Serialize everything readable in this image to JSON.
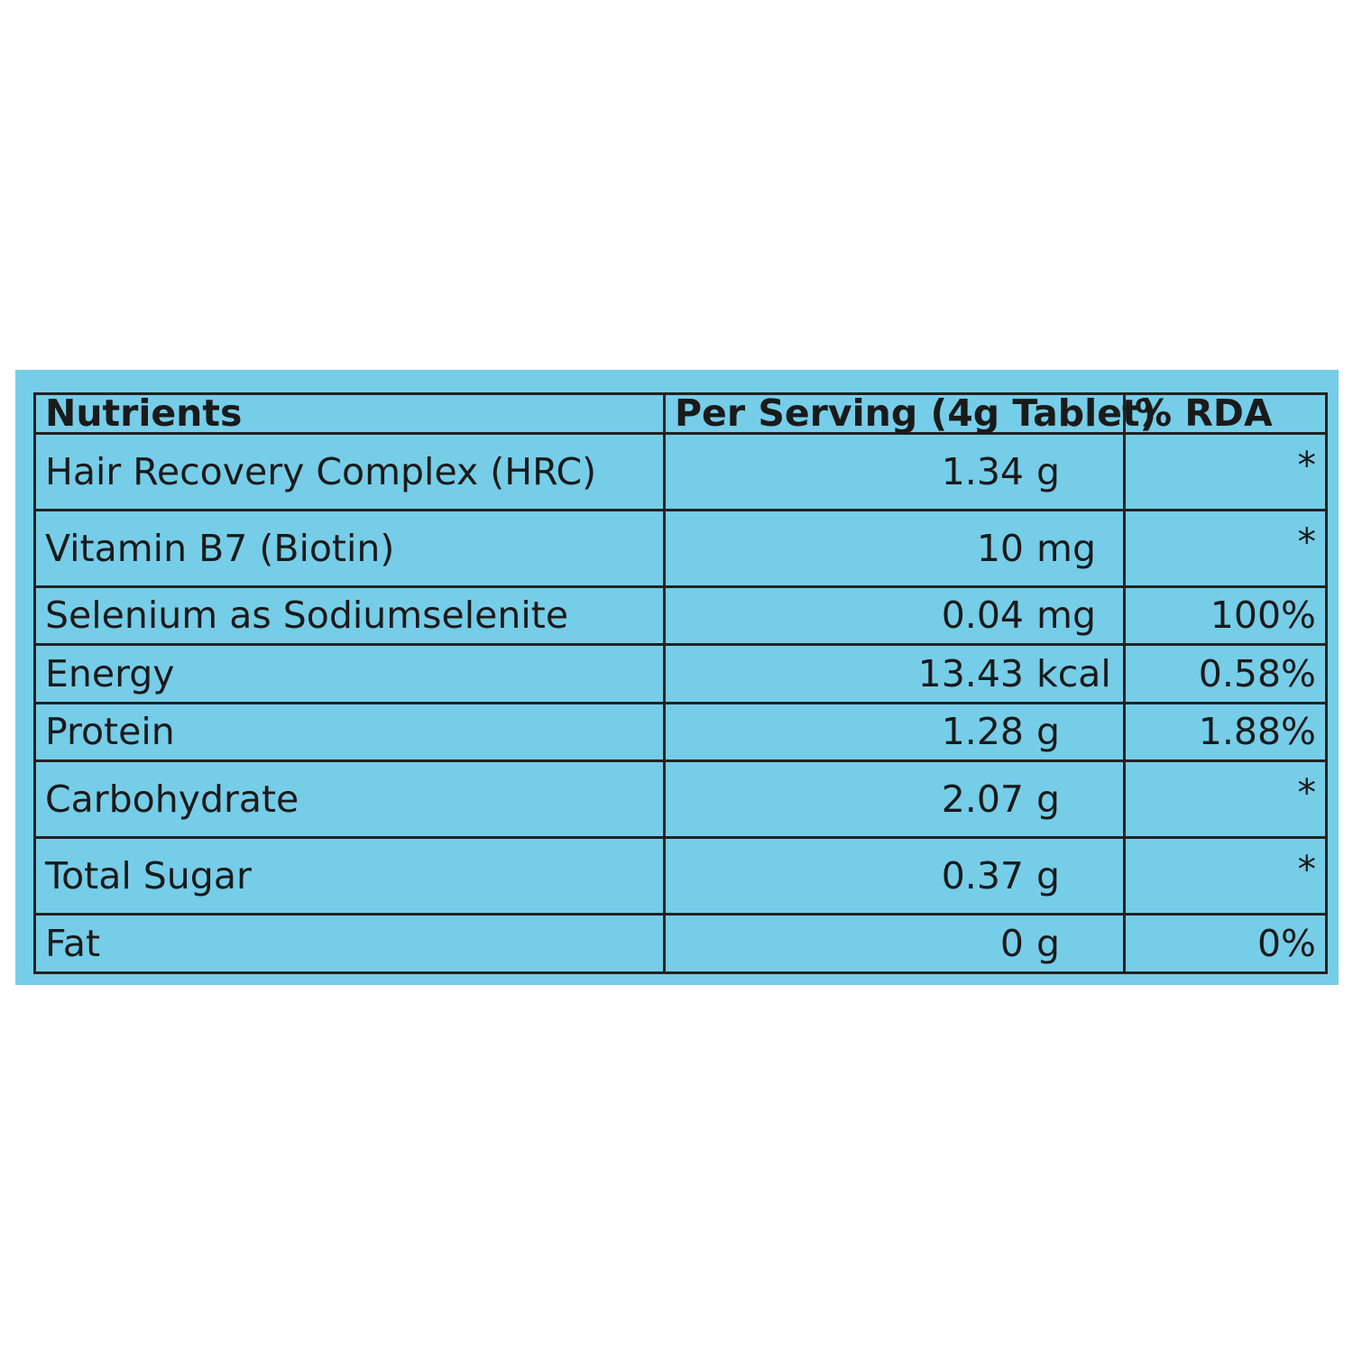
{
  "table": {
    "headers": {
      "nutrients": "Nutrients",
      "per_serving": "Per Serving (4g Tablet)",
      "rda": "% RDA"
    },
    "rows": [
      {
        "nutrient": "Hair Recovery Complex (HRC)",
        "amount": "1.34",
        "unit": "g",
        "rda": "*"
      },
      {
        "nutrient": "Vitamin B7 (Biotin)",
        "amount": "10",
        "unit": "mg",
        "rda": "*"
      },
      {
        "nutrient": "Selenium as Sodiumselenite",
        "amount": "0.04",
        "unit": "mg",
        "rda": "100%"
      },
      {
        "nutrient": "Energy",
        "amount": "13.43",
        "unit": "kcal",
        "rda": "0.58%"
      },
      {
        "nutrient": "Protein",
        "amount": "1.28",
        "unit": "g",
        "rda": "1.88%"
      },
      {
        "nutrient": "Carbohydrate",
        "amount": "2.07",
        "unit": "g",
        "rda": "*"
      },
      {
        "nutrient": "Total Sugar",
        "amount": "0.37",
        "unit": "g",
        "rda": "*"
      },
      {
        "nutrient": "Fat",
        "amount": "0",
        "unit": "g",
        "rda": "0%"
      }
    ]
  },
  "colors": {
    "panel_background": "#76cde8",
    "border": "#222222",
    "text": "#1a1a1a"
  }
}
